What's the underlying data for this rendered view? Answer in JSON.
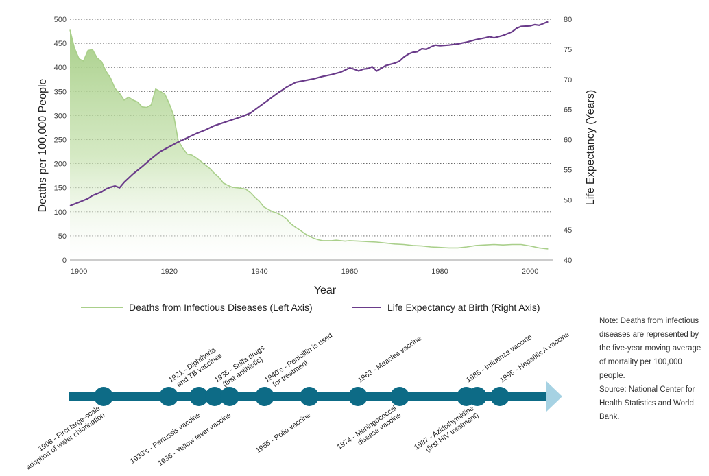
{
  "chart_data": {
    "type": "area",
    "xlabel": "Year",
    "ylabel_left": "Deaths per 100,000 People",
    "ylabel_right": "Life Expectancy (Years)",
    "xlim": [
      1898,
      2005
    ],
    "ylim_left": [
      0,
      500
    ],
    "ylim_right": [
      40,
      80
    ],
    "x_ticks": [
      1900,
      1920,
      1940,
      1960,
      1980,
      2000
    ],
    "left_ticks": [
      0,
      50,
      100,
      150,
      200,
      250,
      300,
      350,
      400,
      450,
      500
    ],
    "right_ticks": [
      40,
      45,
      50,
      55,
      60,
      65,
      70,
      75,
      80
    ],
    "grid": "horizontal dotted",
    "legend_position": "bottom",
    "series": [
      {
        "name": "Deaths from Infectious Diseases (Left Axis)",
        "axis": "left",
        "color": "#a9cf8a",
        "x": [
          1898,
          1899,
          1900,
          1901,
          1902,
          1903,
          1904,
          1905,
          1906,
          1907,
          1908,
          1909,
          1910,
          1911,
          1912,
          1913,
          1914,
          1915,
          1916,
          1917,
          1918,
          1919,
          1920,
          1921,
          1922,
          1923,
          1924,
          1925,
          1926,
          1927,
          1928,
          1929,
          1930,
          1931,
          1932,
          1933,
          1934,
          1935,
          1936,
          1937,
          1938,
          1939,
          1940,
          1941,
          1942,
          1943,
          1944,
          1945,
          1946,
          1947,
          1948,
          1949,
          1950,
          1951,
          1952,
          1953,
          1954,
          1955,
          1956,
          1957,
          1958,
          1959,
          1960,
          1962,
          1964,
          1966,
          1968,
          1970,
          1972,
          1974,
          1976,
          1978,
          1980,
          1982,
          1984,
          1986,
          1988,
          1990,
          1992,
          1994,
          1996,
          1998,
          2000,
          2002,
          2004
        ],
        "y": [
          478,
          440,
          418,
          413,
          435,
          437,
          420,
          412,
          392,
          378,
          356,
          346,
          332,
          338,
          332,
          328,
          318,
          317,
          322,
          355,
          350,
          345,
          325,
          300,
          248,
          232,
          220,
          218,
          212,
          205,
          197,
          190,
          180,
          172,
          160,
          155,
          151,
          150,
          149,
          147,
          140,
          130,
          122,
          110,
          105,
          100,
          97,
          92,
          85,
          75,
          68,
          62,
          55,
          50,
          45,
          42,
          40,
          40,
          40,
          41,
          40,
          39,
          40,
          39,
          38,
          37,
          35,
          33,
          32,
          30,
          29,
          27,
          26,
          25,
          25,
          27,
          30,
          31,
          32,
          31,
          32,
          32,
          29,
          25,
          23
        ]
      },
      {
        "name": "Life Expectancy at Birth (Right Axis)",
        "axis": "right",
        "color": "#6a3b8a",
        "x": [
          1898,
          1900,
          1902,
          1903,
          1904,
          1905,
          1906,
          1907,
          1908,
          1909,
          1910,
          1912,
          1914,
          1916,
          1918,
          1920,
          1922,
          1924,
          1926,
          1928,
          1930,
          1932,
          1934,
          1936,
          1938,
          1940,
          1942,
          1944,
          1946,
          1948,
          1950,
          1952,
          1954,
          1956,
          1958,
          1960,
          1961,
          1962,
          1963,
          1964,
          1965,
          1966,
          1968,
          1970,
          1971,
          1972,
          1973,
          1974,
          1975,
          1976,
          1977,
          1978,
          1979,
          1980,
          1982,
          1984,
          1986,
          1988,
          1990,
          1991,
          1992,
          1994,
          1995,
          1996,
          1997,
          1998,
          2000,
          2001,
          2002,
          2003,
          2004
        ],
        "y": [
          49.0,
          49.6,
          50.2,
          50.7,
          51.0,
          51.3,
          51.8,
          52.1,
          52.3,
          52.0,
          52.9,
          54.3,
          55.5,
          56.8,
          58.0,
          58.8,
          59.6,
          60.3,
          61.0,
          61.6,
          62.3,
          62.8,
          63.3,
          63.8,
          64.4,
          65.5,
          66.6,
          67.7,
          68.7,
          69.5,
          69.8,
          70.1,
          70.5,
          70.8,
          71.2,
          71.9,
          71.7,
          71.4,
          71.7,
          71.8,
          72.1,
          71.4,
          72.3,
          72.7,
          73.0,
          73.7,
          74.2,
          74.5,
          74.6,
          75.1,
          75.0,
          75.4,
          75.7,
          75.6,
          75.7,
          75.9,
          76.2,
          76.6,
          76.9,
          77.1,
          76.9,
          77.3,
          77.6,
          77.9,
          78.5,
          78.8,
          78.9,
          79.1,
          79.0,
          79.3,
          79.6
        ]
      }
    ]
  },
  "legend": {
    "deaths_label": "Deaths from Infectious Diseases (Left Axis)",
    "life_label": "Life Expectancy at Birth (Right Axis)"
  },
  "timeline": {
    "line_color": "#0d6b86",
    "arrow_color": "#a6d2e3",
    "events": [
      {
        "text": [
          "1908 - First large-scale",
          "adoption of water chlorination"
        ],
        "side": "below"
      },
      {
        "text": [
          "1921 - Diphtheria",
          "and TB vaccines"
        ],
        "side": "above"
      },
      {
        "text": [
          "1930's - Pertussis vaccine"
        ],
        "side": "below"
      },
      {
        "text": [
          "1935 - Sulfa drugs",
          "(first antibiotic)"
        ],
        "side": "above"
      },
      {
        "text": [
          "1936 - Yellow fever vaccine"
        ],
        "side": "below"
      },
      {
        "text": [
          "1940's - Penicillin is used",
          "for treatment"
        ],
        "side": "above"
      },
      {
        "text": [
          "1955 - Polio vaccine"
        ],
        "side": "below"
      },
      {
        "text": [
          "1963 - Measles vaccine"
        ],
        "side": "above"
      },
      {
        "text": [
          "1974 - Meningococcal",
          "disease vaccine"
        ],
        "side": "below"
      },
      {
        "text": [
          "1985 - Influenza vaccine"
        ],
        "side": "above"
      },
      {
        "text": [
          "1987 - Azidothymidine",
          "(first HIV treatment)"
        ],
        "side": "below"
      },
      {
        "text": [
          "1995 - Hepatitis A vaccine"
        ],
        "side": "above"
      }
    ]
  },
  "note": {
    "line1": "Note: Deaths from infectious diseases are represented by the five-year moving average of mortality per 100,000 people.",
    "line2": "Source: National Center for Health Statistics and World Bank."
  }
}
